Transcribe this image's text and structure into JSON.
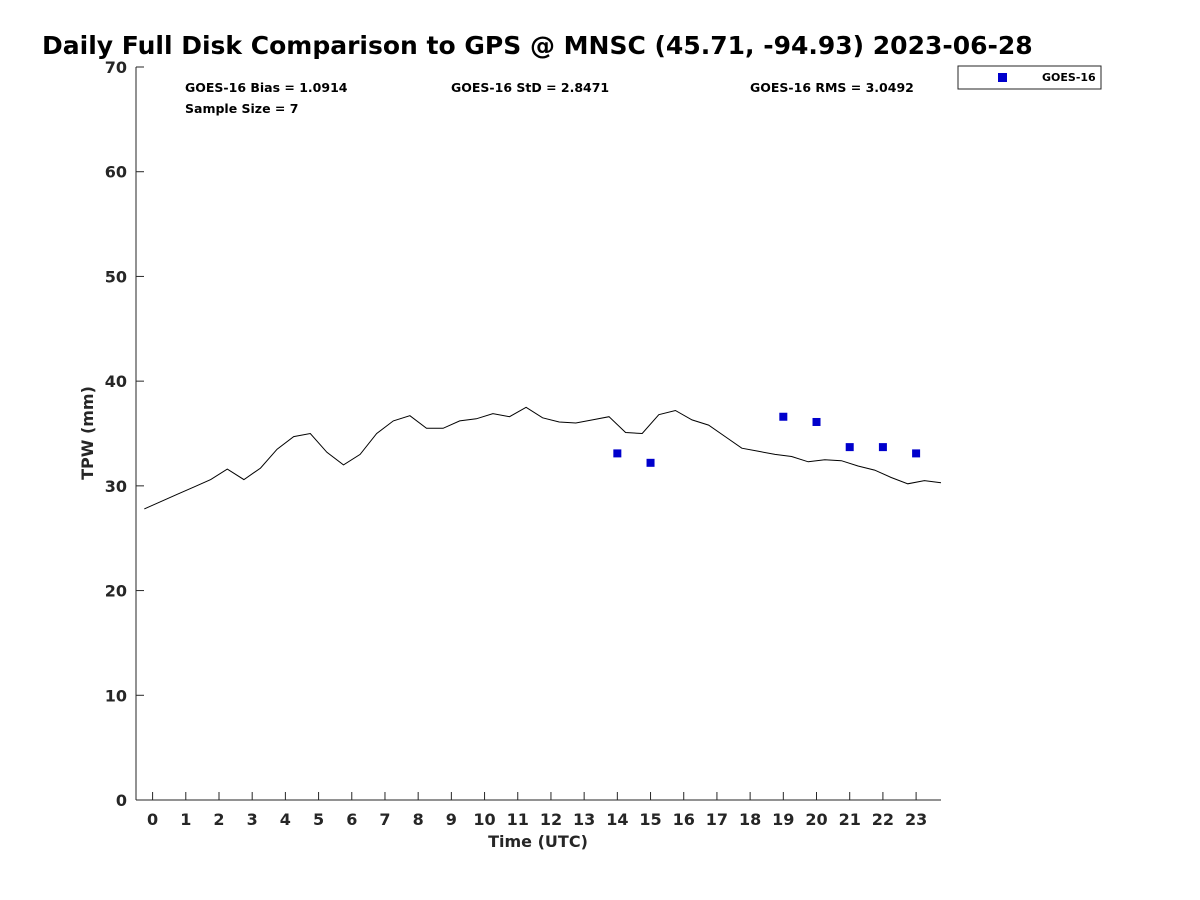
{
  "chart_data": {
    "type": "line",
    "title": "Daily Full Disk Comparison to GPS @ MNSC (45.71, -94.93) 2023-06-28",
    "xlabel": "Time (UTC)",
    "ylabel": "TPW (mm)",
    "xlim": [
      -0.5,
      23.75
    ],
    "ylim": [
      0,
      70
    ],
    "xticks": [
      0,
      1,
      2,
      3,
      4,
      5,
      6,
      7,
      8,
      9,
      10,
      11,
      12,
      13,
      14,
      15,
      16,
      17,
      18,
      19,
      20,
      21,
      22,
      23
    ],
    "yticks": [
      0,
      10,
      20,
      30,
      40,
      50,
      60,
      70
    ],
    "grid": false,
    "legend_position": "top-right",
    "stats": {
      "bias": "GOES-16 Bias = 1.0914",
      "std": "GOES-16 StD = 2.8471",
      "rms": "GOES-16 RMS = 3.0492",
      "sample_size": "Sample Size = 7"
    },
    "series": [
      {
        "kind": "line",
        "color": "#000000",
        "x": [
          -0.25,
          0.25,
          0.75,
          1.25,
          1.75,
          2.25,
          2.75,
          3.25,
          3.75,
          4.25,
          4.75,
          5.25,
          5.75,
          6.25,
          6.75,
          7.25,
          7.75,
          8.25,
          8.75,
          9.25,
          9.75,
          10.25,
          10.75,
          11.25,
          11.75,
          12.25,
          12.75,
          13.25,
          13.75,
          14.25,
          14.75,
          15.25,
          15.75,
          16.25,
          16.75,
          17.25,
          17.75,
          18.25,
          18.75,
          19.25,
          19.75,
          20.25,
          20.75,
          21.25,
          21.75,
          22.25,
          22.75,
          23.25,
          23.75
        ],
        "y": [
          27.8,
          28.5,
          29.2,
          29.9,
          30.6,
          31.6,
          30.6,
          31.7,
          33.5,
          34.7,
          35.0,
          33.2,
          32.0,
          33.0,
          35.0,
          36.2,
          36.7,
          35.5,
          35.5,
          36.2,
          36.4,
          36.9,
          36.6,
          37.5,
          36.5,
          36.1,
          36.0,
          36.3,
          36.6,
          35.1,
          35.0,
          36.8,
          37.2,
          36.3,
          35.8,
          34.7,
          33.6,
          33.3,
          33.0,
          32.8,
          32.3,
          32.5,
          32.4,
          31.9,
          31.5,
          30.8,
          30.2,
          30.5,
          30.3
        ]
      },
      {
        "kind": "scatter",
        "name": "GOES-16",
        "color": "#0000cc",
        "marker": "square",
        "x": [
          14,
          15,
          19,
          20,
          21,
          22,
          23
        ],
        "y": [
          33.1,
          32.2,
          36.6,
          36.1,
          33.7,
          33.7,
          33.1
        ]
      }
    ]
  }
}
